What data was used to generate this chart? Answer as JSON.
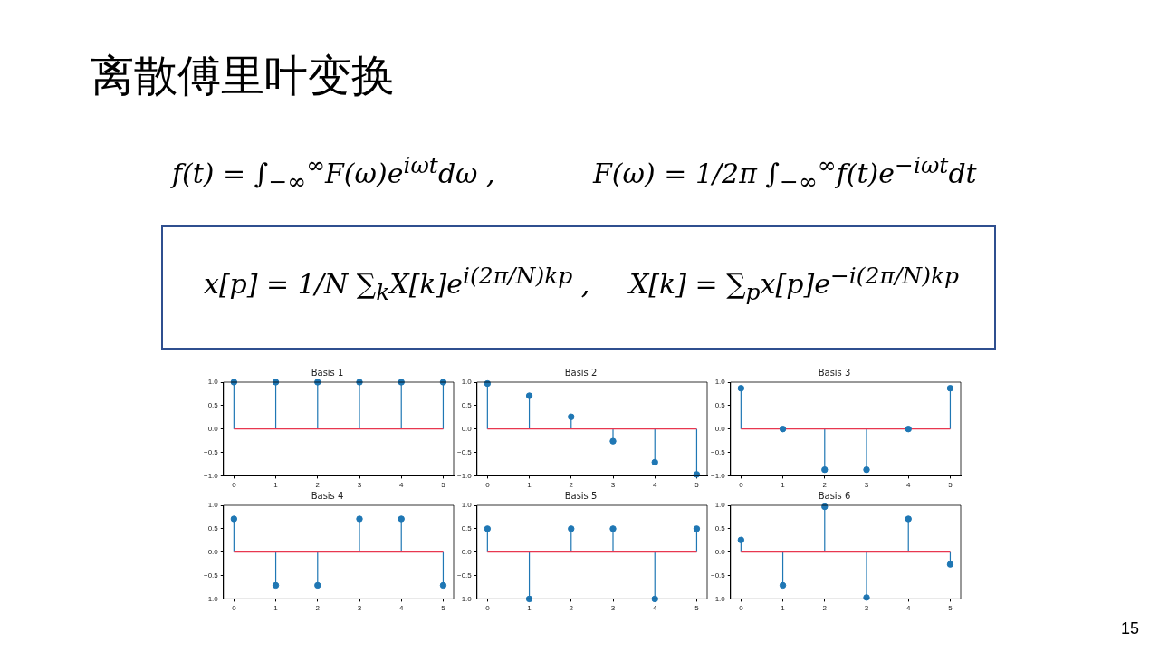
{
  "chart_data": [
    {
      "type": "other",
      "title": "离散傅里叶变换",
      "annotations": [
        "f(t) = ∫$_{−∞}$$^{∞}$F(ω)e$^{iωt}$dω ,",
        "F(ω) = 1/2π ∫$_{−∞}$$^{∞}$f(t)e$^{−iωt}$dt",
        "x[p] = 1/N ∑$_{k}$X[k]e$^{i(2π/N)kp}$ ,",
        "X[k] = ∑$_{p}$x[p]e$^{−i(2π/N)kp}$",
        "15"
      ]
    },
    {
      "type": "lollipop",
      "title": "Basis 1",
      "x": [
        0,
        1,
        2,
        3,
        4,
        5
      ],
      "values": [
        1,
        1,
        1,
        1,
        1,
        1
      ],
      "color": "#1f77b4",
      "xlim": [
        -0.25,
        5.25
      ],
      "xticks": [
        0,
        1,
        2,
        3,
        4,
        5
      ],
      "ylim": [
        -1,
        1
      ],
      "yticks": [
        {
          "value": -1,
          "label": "−1.0"
        },
        {
          "value": -0.5,
          "label": "−0.5"
        },
        {
          "value": 0,
          "label": "0.0"
        },
        {
          "value": 0.5,
          "label": "0.5"
        },
        {
          "value": 1,
          "label": "1.0"
        }
      ],
      "ref_lines": [
        {
          "axis": "y",
          "value": 0,
          "color": "#e8374f"
        }
      ],
      "marker": "circle"
    },
    {
      "type": "lollipop",
      "title": "Basis 2",
      "x": [
        0,
        1,
        2,
        3,
        4,
        5
      ],
      "values": [
        0.97,
        0.71,
        0.26,
        -0.26,
        -0.71,
        -0.97
      ],
      "color": "#1f77b4",
      "xlim": [
        -0.25,
        5.25
      ],
      "xticks": [
        0,
        1,
        2,
        3,
        4,
        5
      ],
      "ylim": [
        -1,
        1
      ],
      "yticks": [
        {
          "value": -1,
          "label": "−1.0"
        },
        {
          "value": -0.5,
          "label": "−0.5"
        },
        {
          "value": 0,
          "label": "0.0"
        },
        {
          "value": 0.5,
          "label": "0.5"
        },
        {
          "value": 1,
          "label": "1.0"
        }
      ],
      "ref_lines": [
        {
          "axis": "y",
          "value": 0,
          "color": "#e8374f"
        }
      ],
      "marker": "circle"
    },
    {
      "type": "lollipop",
      "title": "Basis 3",
      "x": [
        0,
        1,
        2,
        3,
        4,
        5
      ],
      "values": [
        0.87,
        0,
        -0.87,
        -0.87,
        0,
        0.87
      ],
      "color": "#1f77b4",
      "xlim": [
        -0.25,
        5.25
      ],
      "xticks": [
        0,
        1,
        2,
        3,
        4,
        5
      ],
      "ylim": [
        -1,
        1
      ],
      "yticks": [
        {
          "value": -1,
          "label": "−1.0"
        },
        {
          "value": -0.5,
          "label": "−0.5"
        },
        {
          "value": 0,
          "label": "0.0"
        },
        {
          "value": 0.5,
          "label": "0.5"
        },
        {
          "value": 1,
          "label": "1.0"
        }
      ],
      "ref_lines": [
        {
          "axis": "y",
          "value": 0,
          "color": "#e8374f"
        }
      ],
      "marker": "circle"
    },
    {
      "type": "lollipop",
      "title": "Basis 4",
      "x": [
        0,
        1,
        2,
        3,
        4,
        5
      ],
      "values": [
        0.71,
        -0.71,
        -0.71,
        0.71,
        0.71,
        -0.71
      ],
      "color": "#1f77b4",
      "xlim": [
        -0.25,
        5.25
      ],
      "xticks": [
        0,
        1,
        2,
        3,
        4,
        5
      ],
      "ylim": [
        -1,
        1
      ],
      "yticks": [
        {
          "value": -1,
          "label": "−1.0"
        },
        {
          "value": -0.5,
          "label": "−0.5"
        },
        {
          "value": 0,
          "label": "0.0"
        },
        {
          "value": 0.5,
          "label": "0.5"
        },
        {
          "value": 1,
          "label": "1.0"
        }
      ],
      "ref_lines": [
        {
          "axis": "y",
          "value": 0,
          "color": "#e8374f"
        }
      ],
      "marker": "circle"
    },
    {
      "type": "lollipop",
      "title": "Basis 5",
      "x": [
        0,
        1,
        2,
        3,
        4,
        5
      ],
      "values": [
        0.5,
        -1,
        0.5,
        0.5,
        -1,
        0.5
      ],
      "color": "#1f77b4",
      "xlim": [
        -0.25,
        5.25
      ],
      "xticks": [
        0,
        1,
        2,
        3,
        4,
        5
      ],
      "ylim": [
        -1,
        1
      ],
      "yticks": [
        {
          "value": -1,
          "label": "−1.0"
        },
        {
          "value": -0.5,
          "label": "−0.5"
        },
        {
          "value": 0,
          "label": "0.0"
        },
        {
          "value": 0.5,
          "label": "0.5"
        },
        {
          "value": 1,
          "label": "1.0"
        }
      ],
      "ref_lines": [
        {
          "axis": "y",
          "value": 0,
          "color": "#e8374f"
        }
      ],
      "marker": "circle"
    },
    {
      "type": "lollipop",
      "title": "Basis 6",
      "x": [
        0,
        1,
        2,
        3,
        4,
        5
      ],
      "values": [
        0.26,
        -0.71,
        0.97,
        -0.97,
        0.71,
        -0.26
      ],
      "color": "#1f77b4",
      "xlim": [
        -0.25,
        5.25
      ],
      "xticks": [
        0,
        1,
        2,
        3,
        4,
        5
      ],
      "ylim": [
        -1,
        1
      ],
      "yticks": [
        {
          "value": -1,
          "label": "−1.0"
        },
        {
          "value": -0.5,
          "label": "−0.5"
        },
        {
          "value": 0,
          "label": "0.0"
        },
        {
          "value": 0.5,
          "label": "0.5"
        },
        {
          "value": 1,
          "label": "1.0"
        }
      ],
      "ref_lines": [
        {
          "axis": "y",
          "value": 0,
          "color": "#e8374f"
        }
      ],
      "marker": "circle"
    }
  ]
}
